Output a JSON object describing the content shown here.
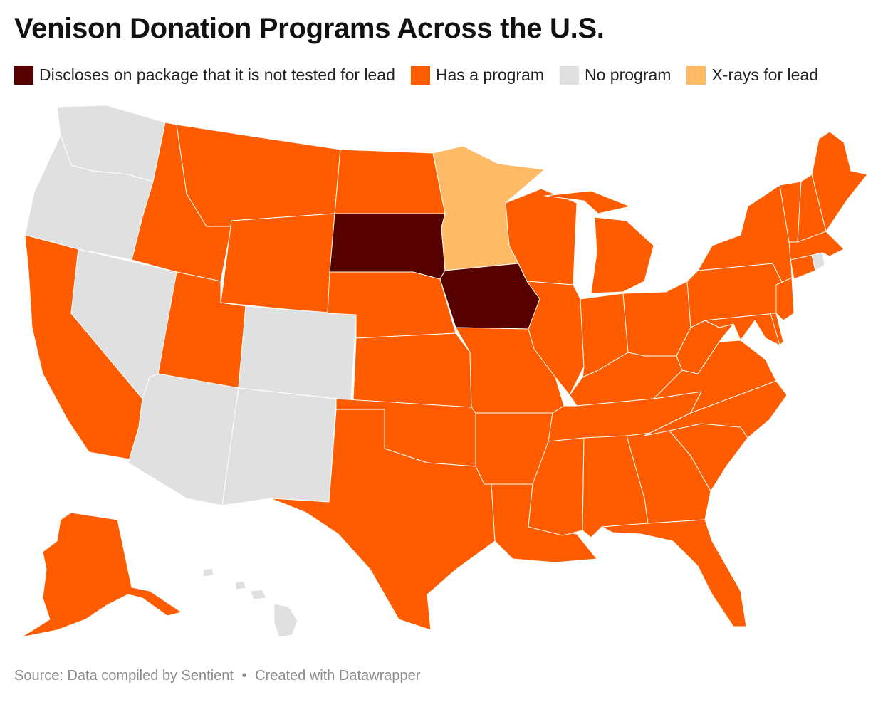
{
  "title": "Venison Donation Programs Across the U.S.",
  "legend": [
    {
      "key": "not_tested",
      "label": "Discloses on package that it is not tested for lead",
      "color": "#570000"
    },
    {
      "key": "program",
      "label": "Has a program",
      "color": "#ff5c00"
    },
    {
      "key": "none",
      "label": "No program",
      "color": "#e0e0e0"
    },
    {
      "key": "xray",
      "label": "X-rays for lead",
      "color": "#ffba66"
    }
  ],
  "states": {
    "WA": "none",
    "OR": "none",
    "CA": "program",
    "NV": "none",
    "ID": "program",
    "MT": "program",
    "WY": "program",
    "UT": "program",
    "AZ": "none",
    "CO": "none",
    "NM": "none",
    "ND": "program",
    "SD": "not_tested",
    "NE": "program",
    "KS": "program",
    "OK": "program",
    "TX": "program",
    "MN": "xray",
    "IA": "not_tested",
    "MO": "program",
    "AR": "program",
    "LA": "program",
    "WI": "program",
    "IL": "program",
    "MS": "program",
    "MI": "program",
    "IN": "program",
    "KY": "program",
    "TN": "program",
    "AL": "program",
    "OH": "program",
    "GA": "program",
    "FL": "program",
    "SC": "program",
    "NC": "program",
    "VA": "program",
    "WV": "program",
    "PA": "program",
    "NY": "program",
    "MD": "program",
    "DE": "program",
    "NJ": "program",
    "CT": "program",
    "RI": "none",
    "MA": "program",
    "VT": "program",
    "NH": "program",
    "ME": "program",
    "AK": "program",
    "HI": "none"
  },
  "footer": {
    "source": "Source: Data compiled by Sentient",
    "credit": "Created with Datawrapper",
    "separator": "•"
  }
}
